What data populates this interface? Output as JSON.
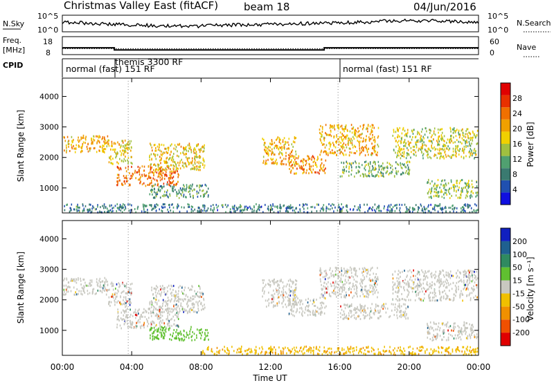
{
  "header": {
    "title": "Christmas Valley East (fitACF)",
    "beam": "beam 18",
    "date": "04/Jun/2016"
  },
  "noise_panel": {
    "left_label": "N.Sky",
    "right_label": "N.Search",
    "ticks": [
      "10^5",
      "10^0"
    ]
  },
  "freq_panel": {
    "left_label_1": "Freq.",
    "left_label_2": "[MHz]",
    "right_label": "Nave",
    "left_ticks": [
      "18",
      "8"
    ],
    "right_ticks": [
      "60",
      "0"
    ]
  },
  "cpid": {
    "label": "CPID",
    "segments": [
      "normal (fast) 151 RF",
      "themis 3300 RF",
      "normal (fast) 151 RF"
    ]
  },
  "power_panel": {
    "ylabel": "Slant Range [km]",
    "yticks": [
      "1000",
      "2000",
      "3000",
      "4000"
    ],
    "colorbar_label": "Power [dB]",
    "colorbar_ticks": [
      "4",
      "8",
      "12",
      "16",
      "20",
      "24",
      "28"
    ],
    "colors": [
      "#1010e0",
      "#2050b0",
      "#3a7a70",
      "#50a070",
      "#a0c040",
      "#f0d000",
      "#f0a000",
      "#f07000",
      "#e83000",
      "#e00000"
    ]
  },
  "velocity_panel": {
    "ylabel": "Slant Range [km]",
    "yticks": [
      "1000",
      "2000",
      "3000",
      "4000"
    ],
    "colorbar_label": "Velocity [m s⁻¹]",
    "colorbar_ticks": [
      "200",
      "100",
      "50",
      "15",
      "-15",
      "-50",
      "-100",
      "-200"
    ],
    "colors": [
      "#1020c0",
      "#1f6090",
      "#2f8a60",
      "#60c030",
      "#c8c8c0",
      "#f0c000",
      "#f09000",
      "#f05000",
      "#e00000"
    ]
  },
  "xaxis": {
    "label": "Time UT",
    "ticks": [
      "00:00",
      "04:00",
      "08:00",
      "12:00",
      "16:00",
      "20:00",
      "00:00"
    ]
  },
  "chart_data": [
    {
      "type": "heatmap",
      "name": "power",
      "xlabel": "Time UT",
      "ylabel": "Slant Range [km]",
      "xlim": [
        0,
        24
      ],
      "ylim": [
        180,
        4600
      ],
      "colorbar": {
        "label": "Power [dB]",
        "range": [
          0,
          32
        ]
      },
      "regions": [
        {
          "t": [
            0.0,
            2.6
          ],
          "r": [
            2200,
            2750
          ],
          "level": 20
        },
        {
          "t": [
            2.6,
            4.0
          ],
          "r": [
            1800,
            2600
          ],
          "level": 18
        },
        {
          "t": [
            3.1,
            6.7
          ],
          "r": [
            1100,
            1750
          ],
          "level": 24
        },
        {
          "t": [
            5.0,
            8.2
          ],
          "r": [
            1600,
            2500
          ],
          "level": 18
        },
        {
          "t": [
            5.0,
            8.4
          ],
          "r": [
            700,
            1150
          ],
          "level": 10
        },
        {
          "t": [
            11.5,
            13.5
          ],
          "r": [
            1800,
            2700
          ],
          "level": 20
        },
        {
          "t": [
            13.0,
            15.2
          ],
          "r": [
            1500,
            2100
          ],
          "level": 22
        },
        {
          "t": [
            14.8,
            18.2
          ],
          "r": [
            2100,
            3100
          ],
          "level": 20
        },
        {
          "t": [
            16.0,
            20.0
          ],
          "r": [
            1400,
            1900
          ],
          "level": 12
        },
        {
          "t": [
            19.0,
            24.0
          ],
          "r": [
            2000,
            3000
          ],
          "level": 16
        },
        {
          "t": [
            21.0,
            24.0
          ],
          "r": [
            700,
            1300
          ],
          "level": 14
        },
        {
          "t": [
            0.0,
            24.0
          ],
          "r": [
            200,
            500
          ],
          "level": 8
        }
      ]
    },
    {
      "type": "heatmap",
      "name": "velocity",
      "xlabel": "Time UT",
      "ylabel": "Slant Range [km]",
      "xlim": [
        0,
        24
      ],
      "ylim": [
        180,
        4600
      ],
      "colorbar": {
        "label": "Velocity [m s⁻¹]",
        "range": [
          -200,
          200
        ]
      },
      "regions": [
        {
          "t": [
            0.0,
            2.6
          ],
          "r": [
            2200,
            2750
          ],
          "level": 0
        },
        {
          "t": [
            2.6,
            4.0
          ],
          "r": [
            1800,
            2600
          ],
          "level": 0
        },
        {
          "t": [
            3.1,
            6.7
          ],
          "r": [
            1100,
            1750
          ],
          "level": 0
        },
        {
          "t": [
            5.0,
            8.2
          ],
          "r": [
            1600,
            2500
          ],
          "level": 0
        },
        {
          "t": [
            5.0,
            8.4
          ],
          "r": [
            700,
            1150
          ],
          "level": 40
        },
        {
          "t": [
            11.5,
            13.5
          ],
          "r": [
            1800,
            2700
          ],
          "level": 0
        },
        {
          "t": [
            13.0,
            15.2
          ],
          "r": [
            1500,
            2100
          ],
          "level": 0
        },
        {
          "t": [
            14.8,
            18.2
          ],
          "r": [
            2100,
            3100
          ],
          "level": 0
        },
        {
          "t": [
            16.0,
            20.0
          ],
          "r": [
            1400,
            1900
          ],
          "level": 0
        },
        {
          "t": [
            19.0,
            24.0
          ],
          "r": [
            2000,
            3000
          ],
          "level": 0
        },
        {
          "t": [
            21.0,
            24.0
          ],
          "r": [
            700,
            1300
          ],
          "level": 0
        },
        {
          "t": [
            8.0,
            24.0
          ],
          "r": [
            200,
            500
          ],
          "level": -60
        }
      ]
    },
    {
      "type": "line",
      "name": "frequency",
      "ylabel": "[MHz]",
      "ylim": [
        8,
        18
      ],
      "x": [
        0.0,
        3.0,
        3.0,
        15.1,
        15.1,
        24.0
      ],
      "y": [
        11.8,
        11.8,
        10.6,
        10.6,
        11.8,
        11.8
      ]
    },
    {
      "type": "line",
      "name": "nave",
      "ylim": [
        0,
        60
      ],
      "x": [
        0,
        24
      ],
      "y": [
        20,
        20
      ]
    }
  ]
}
